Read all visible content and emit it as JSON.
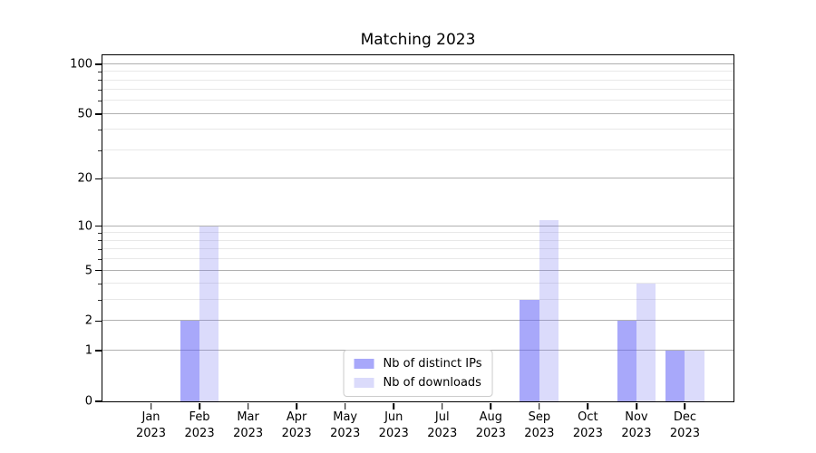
{
  "chart_data": {
    "type": "bar",
    "title": "Matching 2023",
    "categories": [
      "Jan",
      "Feb",
      "Mar",
      "Apr",
      "May",
      "Jun",
      "Jul",
      "Aug",
      "Sep",
      "Oct",
      "Nov",
      "Dec"
    ],
    "category_sublabel": "2023",
    "series": [
      {
        "name": "Nb of distinct IPs",
        "color": "rgba(97,97,246,0.55)",
        "values": [
          0,
          2,
          0,
          0,
          0,
          0,
          0,
          0,
          3,
          0,
          2,
          1
        ]
      },
      {
        "name": "Nb of downloads",
        "color": "rgba(110,110,240,0.25)",
        "values": [
          0,
          10,
          0,
          0,
          0,
          0,
          0,
          0,
          11,
          0,
          4,
          1
        ]
      }
    ],
    "yscale": "log1p",
    "ylim": [
      0,
      113
    ],
    "yticks_major": [
      0,
      1,
      2,
      5,
      10,
      20,
      50,
      100
    ],
    "yticks_minor": [
      3,
      4,
      6,
      7,
      8,
      9,
      30,
      40,
      60,
      70,
      80,
      90
    ],
    "grid": true,
    "legend_position": "lower center",
    "colors": {
      "grid_major": "#b0b0b0",
      "grid_minor": "#e8e8e8",
      "spine": "#000000",
      "text": "#000000"
    }
  }
}
